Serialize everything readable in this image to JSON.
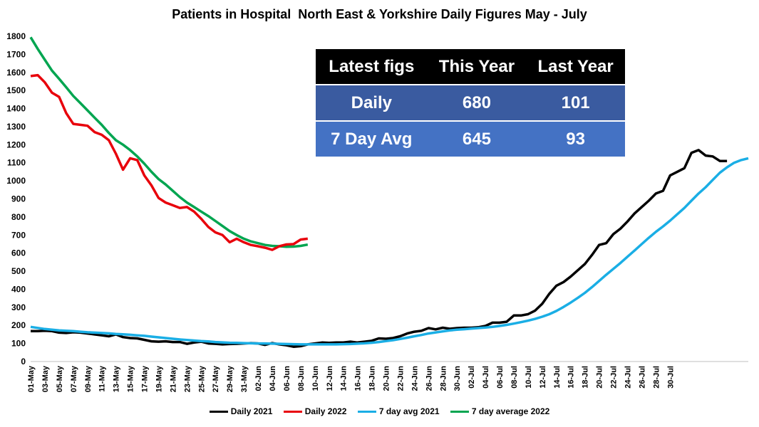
{
  "chart_data": {
    "type": "line",
    "title": "Patients in Hospital  North East & Yorkshire Daily Figures May - July",
    "ylim": [
      0,
      1800
    ],
    "yticks": [
      0,
      100,
      200,
      300,
      400,
      500,
      600,
      700,
      800,
      900,
      1000,
      1100,
      1200,
      1300,
      1400,
      1500,
      1600,
      1700,
      1800
    ],
    "x_tick_labels": [
      "01-May",
      "03-May",
      "05-May",
      "07-May",
      "09-May",
      "11-May",
      "13-May",
      "15-May",
      "17-May",
      "19-May",
      "21-May",
      "23-May",
      "25-May",
      "27-May",
      "29-May",
      "31-May",
      "02-Jun",
      "04-Jun",
      "06-Jun",
      "08-Jun",
      "10-Jun",
      "12-Jun",
      "14-Jun",
      "16-Jun",
      "18-Jun",
      "20-Jun",
      "22-Jun",
      "24-Jun",
      "26-Jun",
      "28-Jun",
      "30-Jun",
      "02-Jul",
      "04-Jul",
      "06-Jul",
      "08-Jul",
      "10-Jul",
      "12-Jul",
      "14-Jul",
      "16-Jul",
      "18-Jul",
      "20-Jul",
      "22-Jul",
      "24-Jul",
      "26-Jul",
      "28-Jul",
      "30-Jul"
    ],
    "grid": false,
    "legend_position": "bottom",
    "series": [
      {
        "name": "Daily 2021",
        "color": "#000000",
        "values": [
          168,
          168,
          170,
          168,
          160,
          158,
          162,
          160,
          155,
          150,
          145,
          140,
          150,
          135,
          130,
          128,
          120,
          112,
          110,
          112,
          108,
          108,
          98,
          105,
          110,
          100,
          98,
          95,
          97,
          98,
          100,
          102,
          100,
          92,
          102,
          95,
          90,
          82,
          85,
          95,
          100,
          105,
          103,
          105,
          105,
          110,
          105,
          110,
          115,
          128,
          126,
          130,
          140,
          155,
          165,
          170,
          185,
          178,
          187,
          181,
          185,
          187,
          187,
          190,
          197,
          215,
          215,
          220,
          255,
          255,
          262,
          282,
          320,
          375,
          420,
          440,
          470,
          505,
          540,
          590,
          645,
          655,
          705,
          735,
          775,
          820,
          855,
          890,
          930,
          945,
          1030,
          1050,
          1070,
          1155,
          1170,
          1140,
          1135,
          1110,
          1110
        ]
      },
      {
        "name": "Daily 2022",
        "color": "#e8000b",
        "values": [
          1580,
          1585,
          1545,
          1488,
          1465,
          1375,
          1315,
          1310,
          1305,
          1270,
          1255,
          1225,
          1150,
          1062,
          1125,
          1115,
          1030,
          975,
          905,
          880,
          865,
          850,
          855,
          830,
          790,
          745,
          715,
          700,
          660,
          680,
          660,
          645,
          638,
          630,
          618,
          638,
          648,
          650,
          675,
          680
        ]
      },
      {
        "name": "7 day avg 2021",
        "color": "#1aaee5",
        "values": [
          192,
          186,
          180,
          176,
          172,
          170,
          168,
          165,
          162,
          160,
          158,
          156,
          153,
          151,
          148,
          145,
          142,
          138,
          134,
          130,
          126,
          122,
          119,
          116,
          113,
          111,
          108,
          106,
          104,
          103,
          102,
          101,
          100,
          100,
          99,
          98,
          97,
          96,
          95,
          95,
          95,
          95,
          95,
          95,
          96,
          97,
          99,
          101,
          104,
          108,
          113,
          118,
          125,
          132,
          140,
          147,
          155,
          161,
          167,
          172,
          176,
          179,
          182,
          185,
          188,
          192,
          197,
          203,
          210,
          218,
          226,
          236,
          248,
          262,
          280,
          302,
          326,
          352,
          380,
          412,
          446,
          480,
          513,
          545,
          580,
          615,
          650,
          685,
          718,
          748,
          780,
          815,
          850,
          890,
          930,
          965,
          1005,
          1045,
          1075,
          1100,
          1115,
          1125
        ]
      },
      {
        "name": "7 day average 2022",
        "color": "#00a550",
        "values": [
          1795,
          1730,
          1670,
          1610,
          1565,
          1518,
          1470,
          1430,
          1390,
          1350,
          1310,
          1265,
          1225,
          1200,
          1170,
          1135,
          1095,
          1050,
          1010,
          980,
          945,
          910,
          880,
          855,
          830,
          805,
          778,
          750,
          722,
          700,
          680,
          665,
          655,
          645,
          640,
          638,
          635,
          636,
          640,
          647
        ]
      }
    ]
  },
  "table": {
    "headers": [
      "Latest figs",
      "This Year",
      "Last Year"
    ],
    "rows": [
      [
        "Daily",
        "680",
        "101"
      ],
      [
        "7 Day Avg",
        "645",
        "93"
      ]
    ]
  }
}
